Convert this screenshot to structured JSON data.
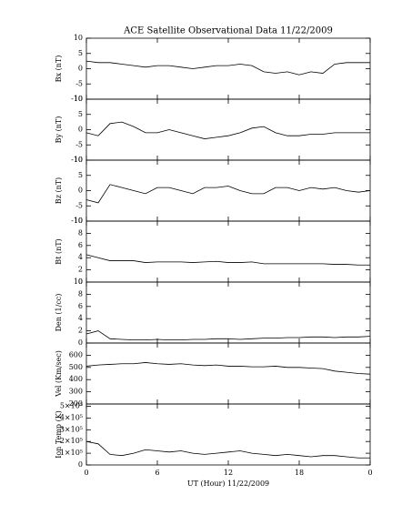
{
  "chart_data": [
    {
      "type": "line",
      "title": "ACE Satellite Observational Data   11/22/2009",
      "ylabel": "Bx (nT)",
      "color": "#000000",
      "x": [
        0,
        1,
        2,
        3,
        4,
        5,
        6,
        7,
        8,
        9,
        10,
        11,
        12,
        13,
        14,
        15,
        16,
        17,
        18,
        19,
        20,
        21,
        22,
        23,
        24
      ],
      "values": [
        2.5,
        2,
        2,
        1.5,
        1,
        0.5,
        1,
        1,
        0.5,
        0,
        0.5,
        1,
        1,
        1.5,
        1,
        -1,
        -1.5,
        -1,
        -2,
        -1,
        -1.5,
        1.5,
        2,
        2,
        2
      ],
      "xlim": [
        0,
        24
      ],
      "xticks": [
        0,
        6,
        12,
        18,
        {
          "value": 24,
          "label": "0"
        }
      ],
      "ylim": [
        -10,
        10
      ],
      "yticks": [
        -10,
        -5,
        0,
        5,
        10
      ]
    },
    {
      "type": "line",
      "ylabel": "By (nT)",
      "color": "#000000",
      "x": [
        0,
        1,
        2,
        3,
        4,
        5,
        6,
        7,
        8,
        9,
        10,
        11,
        12,
        13,
        14,
        15,
        16,
        17,
        18,
        19,
        20,
        21,
        22,
        23,
        24
      ],
      "values": [
        -1,
        -2,
        2,
        2.5,
        1,
        -1,
        -1,
        0,
        -1,
        -2,
        -3,
        -2.5,
        -2,
        -1,
        0.5,
        1,
        -1,
        -2,
        -2,
        -1.5,
        -1.5,
        -1,
        -1,
        -1,
        -1
      ],
      "xlim": [
        0,
        24
      ],
      "xticks": [
        0,
        6,
        12,
        18,
        {
          "value": 24,
          "label": "0"
        }
      ],
      "ylim": [
        -10,
        10
      ],
      "yticks": [
        -10,
        -5,
        0,
        5,
        10
      ]
    },
    {
      "type": "line",
      "ylabel": "Bz (nT)",
      "color": "#000000",
      "x": [
        0,
        1,
        2,
        3,
        4,
        5,
        6,
        7,
        8,
        9,
        10,
        11,
        12,
        13,
        14,
        15,
        16,
        17,
        18,
        19,
        20,
        21,
        22,
        23,
        24
      ],
      "values": [
        -3,
        -4,
        2,
        1,
        0,
        -1,
        1,
        1,
        0,
        -1,
        1,
        1,
        1.5,
        0,
        -1,
        -1,
        1,
        1,
        0,
        1,
        0.5,
        1,
        0,
        -0.5,
        0
      ],
      "xlim": [
        0,
        24
      ],
      "xticks": [
        0,
        6,
        12,
        18,
        {
          "value": 24,
          "label": "0"
        }
      ],
      "ylim": [
        -10,
        10
      ],
      "yticks": [
        -10,
        -5,
        0,
        5,
        10
      ]
    },
    {
      "type": "line",
      "ylabel": "Bt (nT)",
      "color": "#000000",
      "x": [
        0,
        1,
        2,
        3,
        4,
        5,
        6,
        7,
        8,
        9,
        10,
        11,
        12,
        13,
        14,
        15,
        16,
        17,
        18,
        19,
        20,
        21,
        22,
        23,
        24
      ],
      "values": [
        4.5,
        4,
        3.5,
        3.5,
        3.5,
        3.2,
        3.3,
        3.3,
        3.3,
        3.2,
        3.3,
        3.4,
        3.2,
        3.2,
        3.3,
        3,
        3,
        3,
        3,
        3,
        3,
        2.9,
        2.9,
        2.8,
        2.8
      ],
      "xlim": [
        0,
        24
      ],
      "xticks": [
        0,
        6,
        12,
        18,
        {
          "value": 24,
          "label": "0"
        }
      ],
      "ylim": [
        0,
        10
      ],
      "yticks": [
        0,
        2,
        4,
        6,
        8,
        10
      ]
    },
    {
      "type": "line",
      "ylabel": "Den (1/cc)",
      "color": "#000000",
      "x": [
        0,
        1,
        2,
        3,
        4,
        5,
        6,
        7,
        8,
        9,
        10,
        11,
        12,
        13,
        14,
        15,
        16,
        17,
        18,
        19,
        20,
        21,
        22,
        23,
        24
      ],
      "values": [
        1.5,
        2,
        0.7,
        0.6,
        0.5,
        0.5,
        0.6,
        0.5,
        0.5,
        0.6,
        0.6,
        0.7,
        0.7,
        0.6,
        0.7,
        0.8,
        0.8,
        0.9,
        0.9,
        1,
        1,
        0.9,
        1,
        1,
        1.1
      ],
      "xlim": [
        0,
        24
      ],
      "xticks": [
        0,
        6,
        12,
        18,
        {
          "value": 24,
          "label": "0"
        }
      ],
      "ylim": [
        0,
        10
      ],
      "yticks": [
        0,
        2,
        4,
        6,
        8,
        10
      ]
    },
    {
      "type": "line",
      "ylabel": "Vel (Km/sec)",
      "color": "#000000",
      "x": [
        0,
        1,
        2,
        3,
        4,
        5,
        6,
        7,
        8,
        9,
        10,
        11,
        12,
        13,
        14,
        15,
        16,
        17,
        18,
        19,
        20,
        21,
        22,
        23,
        24
      ],
      "values": [
        510,
        520,
        525,
        530,
        530,
        540,
        530,
        525,
        530,
        520,
        515,
        520,
        510,
        510,
        505,
        505,
        510,
        500,
        500,
        495,
        490,
        470,
        460,
        450,
        445
      ],
      "xlim": [
        0,
        24
      ],
      "xticks": [
        0,
        6,
        12,
        18,
        {
          "value": 24,
          "label": "0"
        }
      ],
      "ylim": [
        200,
        700
      ],
      "yticks": [
        200,
        300,
        400,
        500,
        600
      ]
    },
    {
      "type": "line",
      "ylabel": "Ion Temp (K)",
      "xlabel": "UT (Hour)  11/22/2009",
      "color": "#000000",
      "x": [
        0,
        1,
        2,
        3,
        4,
        5,
        6,
        7,
        8,
        9,
        10,
        11,
        12,
        13,
        14,
        15,
        16,
        17,
        18,
        19,
        20,
        21,
        22,
        23,
        24
      ],
      "values": [
        200000,
        180000,
        90000,
        80000,
        100000,
        130000,
        120000,
        110000,
        120000,
        100000,
        90000,
        100000,
        110000,
        120000,
        100000,
        90000,
        80000,
        90000,
        80000,
        70000,
        80000,
        80000,
        70000,
        60000,
        60000
      ],
      "xlim": [
        0,
        24
      ],
      "xticks": [
        0,
        6,
        12,
        18,
        {
          "value": 24,
          "label": "0"
        }
      ],
      "ylim": [
        0,
        520000
      ],
      "yticks": [
        0,
        {
          "value": 100000,
          "label": "1×10⁵"
        },
        {
          "value": 200000,
          "label": "2×10⁵"
        },
        {
          "value": 300000,
          "label": "3×10⁵"
        },
        {
          "value": 400000,
          "label": "4×10⁵"
        },
        {
          "value": 500000,
          "label": "5×10⁵"
        }
      ]
    }
  ]
}
